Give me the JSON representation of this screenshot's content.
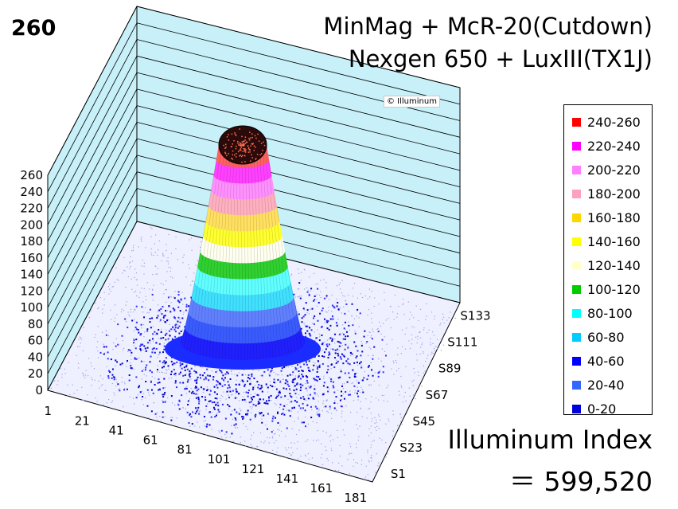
{
  "chart_data": {
    "type": "surface3d",
    "corner_label": "260",
    "title_lines": [
      "MinMag + McR-20(Cutdown)",
      "Nexgen 650 + LuxIII(TX1J)"
    ],
    "watermark": "© Illuminum",
    "z_ticks": [
      "0",
      "20",
      "40",
      "60",
      "80",
      "100",
      "120",
      "140",
      "160",
      "180",
      "200",
      "220",
      "240",
      "260"
    ],
    "zlim": [
      0,
      260
    ],
    "x_ticks": [
      "1",
      "21",
      "41",
      "61",
      "81",
      "101",
      "121",
      "141",
      "161",
      "181"
    ],
    "y_ticks": [
      "S1",
      "S23",
      "S45",
      "S67",
      "S89",
      "S111",
      "S133"
    ],
    "legend": [
      {
        "label": "240-260",
        "color": "#ff0000"
      },
      {
        "label": "220-240",
        "color": "#ff00ff"
      },
      {
        "label": "200-220",
        "color": "#ff80ff"
      },
      {
        "label": "180-200",
        "color": "#ffa0c0"
      },
      {
        "label": "160-180",
        "color": "#ffd700"
      },
      {
        "label": "140-160",
        "color": "#ffff00"
      },
      {
        "label": "120-140",
        "color": "#ffffcc"
      },
      {
        "label": "100-120",
        "color": "#00cc00"
      },
      {
        "label": "80-100",
        "color": "#00ffff"
      },
      {
        "label": "60-80",
        "color": "#00ccff"
      },
      {
        "label": "40-60",
        "color": "#0000ff"
      },
      {
        "label": "20-40",
        "color": "#3366ff"
      },
      {
        "label": "0-20",
        "color": "#0000dd"
      }
    ],
    "peak_value": 260,
    "index_label": "Illuminum Index",
    "index_value": "＝ 599,520"
  }
}
